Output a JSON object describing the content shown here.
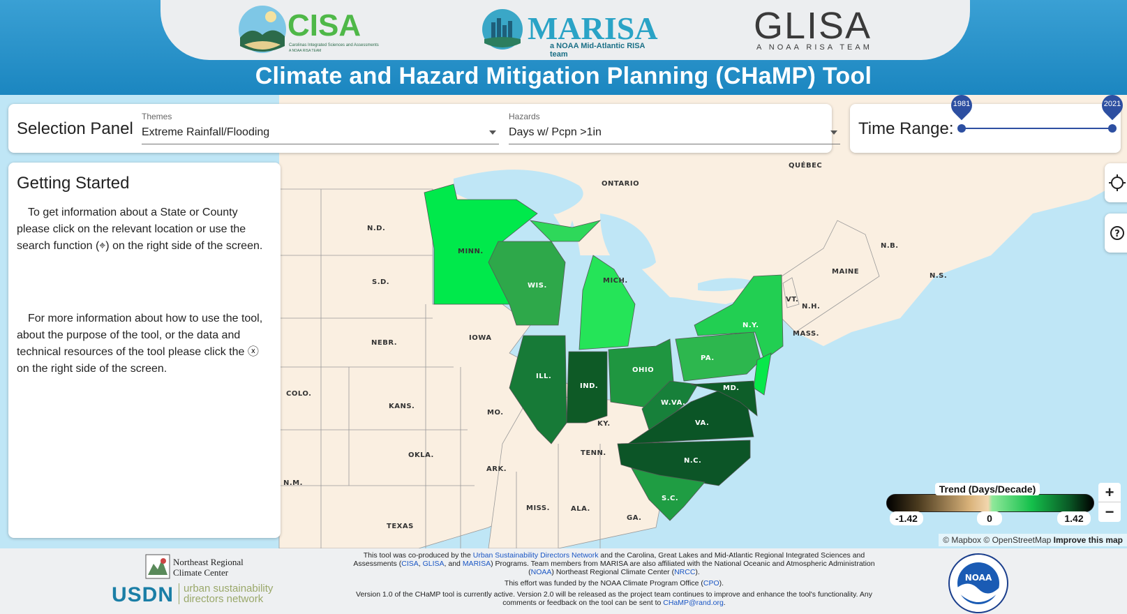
{
  "header": {
    "title": "Climate and Hazard Mitigation Planning (CHaMP) Tool",
    "logos": {
      "cisa": {
        "word": "CISA",
        "sub": "Carolinas Integrated Sciences and Assessments",
        "team": "A NOAA RISA TEAM"
      },
      "marisa": {
        "word": "MARISA",
        "sub": "a NOAA Mid-Atlantic RISA team"
      },
      "glisa": {
        "word": "GLISA",
        "sub": "A NOAA RISA TEAM"
      }
    }
  },
  "selection_panel": {
    "title": "Selection Panel",
    "themes": {
      "caption": "Themes",
      "value": "Extreme Rainfall/Flooding"
    },
    "hazards": {
      "caption": "Hazards",
      "value": "Days w/ Pcpn >1in"
    }
  },
  "time_range": {
    "title": "Time Range:",
    "start": "1981",
    "end": "2021"
  },
  "getting_started": {
    "title": "Getting Started",
    "para1": "To get information about a State or County please click on the relevant location or use the search function (⌖) on the right side of the screen.",
    "para2": "For more information about how to use the tool, about the purpose of the tool, or the data and technical resources of the tool please click the ⓧ on the right side of the screen."
  },
  "map": {
    "labels": {
      "quebec": "QUÉBEC",
      "ontario": "ONTARIO",
      "nd": "N.D.",
      "sd": "S.D.",
      "nebr": "NEBR.",
      "colo": "COLO.",
      "kans": "KANS.",
      "okla": "OKLA.",
      "nm": "N.M.",
      "texas": "TEXAS",
      "minn": "MINN.",
      "iowa": "IOWA",
      "mo": "MO.",
      "ark": "ARK.",
      "miss": "MISS.",
      "ala": "ALA.",
      "ga": "GA.",
      "tenn": "TENN.",
      "ky": "KY.",
      "wis": "WIS.",
      "mich": "MICH.",
      "ill": "ILL.",
      "ind": "IND.",
      "ohio": "OHIO",
      "wva": "W.VA.",
      "va": "VA.",
      "nc": "N.C.",
      "sc": "S.C.",
      "pa": "PA.",
      "md": "MD.",
      "ny": "N.Y.",
      "vt": "VT.",
      "nh": "N.H.",
      "mass": "MASS.",
      "maine": "MAINE",
      "nb": "N.B.",
      "ns": "N.S."
    }
  },
  "legend": {
    "title": "Trend (Days/Decade)",
    "min": "-1.42",
    "zero": "0",
    "max": "1.42"
  },
  "zoom": {
    "in": "+",
    "out": "−"
  },
  "attribution": {
    "mapbox": "© Mapbox",
    "osm": "© OpenStreetMap",
    "improve": "Improve this map"
  },
  "footer": {
    "line1_a": "This tool was co-produced by the ",
    "usdn_link": "Urban Sustainability Directors Network",
    "line1_b": " and the Carolina, Great Lakes and Mid-Atlantic Regional Integrated Sciences and Assessments (",
    "cisa_link": "CISA",
    "glisa_link": "GLISA",
    "marisa_link": "MARISA",
    "line1_c": ") Programs. Team members from MARISA are also affiliated with the National Oceanic and Atmospheric Administration (",
    "noaa_link": "NOAA",
    "line1_d": ") Northeast Regional Climate Center (",
    "nrcc_link": "NRCC",
    "line1_e": ").",
    "line2_a": "This effort was funded by the NOAA Climate Program Office (",
    "cpo_link": "CPO",
    "line2_b": ").",
    "line3": "Version 1.0 of the CHaMP tool is currently active. Version 2.0 will be released as the project team continues to improve and enhance the tool's functionality. Any comments or feedback on the tool can be sent to ",
    "email_link": "CHaMP@rand.org",
    "line3_end": ".",
    "nrcc_name": "Northeast Regional Climate Center",
    "usdn_word": "USDN",
    "usdn_sub": "urban sustainability directors network",
    "noaa_word": "NOAA"
  }
}
